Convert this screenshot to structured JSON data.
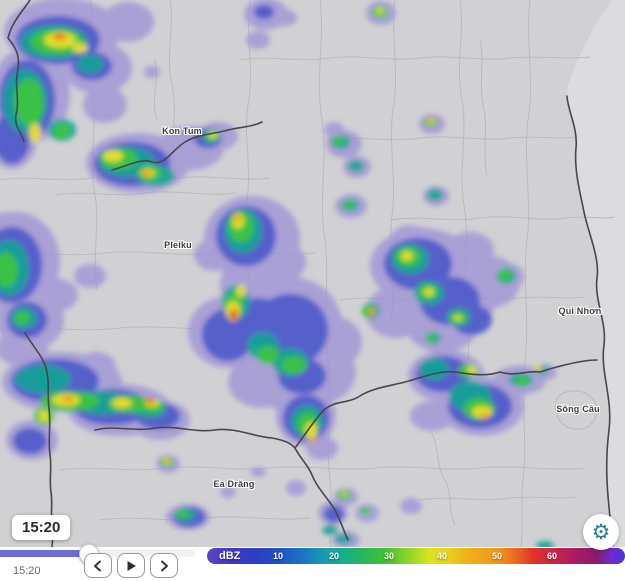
{
  "map": {
    "labels": [
      {
        "name": "Kon Tum"
      },
      {
        "name": "Pleiku"
      },
      {
        "name": "Qui Nhơn"
      },
      {
        "name": "Sông Cầu"
      },
      {
        "name": "Ea Drăng"
      }
    ]
  },
  "timeline": {
    "tooltip_time": "15:20",
    "current_time": "15:20",
    "progress_percent": 45
  },
  "controls": {
    "icons": {
      "step_back": "chevron-left",
      "play": "play-triangle",
      "step_forward": "chevron-right",
      "settings": "gear"
    }
  },
  "legend": {
    "label": "dBZ",
    "ticks": [
      "10",
      "20",
      "30",
      "40",
      "50",
      "60"
    ]
  },
  "settings": {
    "gear_glyph": "⚙"
  },
  "colors": {
    "slider_accent": "#6a6ed2",
    "radar_levels": {
      "drizzle_purple": "#9e92d6",
      "blue": "#4754ca",
      "teal": "#13a495",
      "green": "#3fc53c",
      "yellow": "#eadf27",
      "orange": "#f09a1e",
      "red": "#e2402a"
    }
  }
}
